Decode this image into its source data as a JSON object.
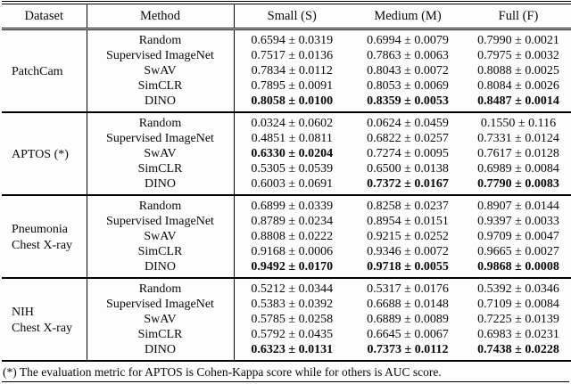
{
  "table": {
    "headers": [
      "Dataset",
      "Method",
      "Small (S)",
      "Medium (M)",
      "Full (F)"
    ],
    "groups": [
      {
        "dataset": "PatchCam",
        "rows": [
          {
            "method": "Random",
            "values": [
              "0.6594 ± 0.0319",
              "0.6994 ± 0.0079",
              "0.7990 ± 0.0021"
            ],
            "bold": [
              false,
              false,
              false
            ]
          },
          {
            "method": "Supervised ImageNet",
            "values": [
              "0.7517 ± 0.0136",
              "0.7863 ± 0.0063",
              "0.7975 ± 0.0032"
            ],
            "bold": [
              false,
              false,
              false
            ]
          },
          {
            "method": "SwAV",
            "values": [
              "0.7834 ± 0.0112",
              "0.8043 ± 0.0072",
              "0.8088 ± 0.0025"
            ],
            "bold": [
              false,
              false,
              false
            ]
          },
          {
            "method": "SimCLR",
            "values": [
              "0.7895 ± 0.0091",
              "0.8053 ± 0.0069",
              "0.8084 ± 0.0026"
            ],
            "bold": [
              false,
              false,
              false
            ]
          },
          {
            "method": "DINO",
            "values": [
              "0.8058 ± 0.0100",
              "0.8359 ± 0.0053",
              "0.8487 ± 0.0014"
            ],
            "bold": [
              true,
              true,
              true
            ]
          }
        ]
      },
      {
        "dataset": "APTOS (*)",
        "rows": [
          {
            "method": "Random",
            "values": [
              "0.0324 ± 0.0602",
              "0.0624 ± 0.0459",
              "0.1550 ± 0.116"
            ],
            "bold": [
              false,
              false,
              false
            ]
          },
          {
            "method": "Supervised ImageNet",
            "values": [
              "0.4851 ± 0.0811",
              "0.6822 ± 0.0257",
              "0.7331 ± 0.0124"
            ],
            "bold": [
              false,
              false,
              false
            ]
          },
          {
            "method": "SwAV",
            "values": [
              "0.6330 ± 0.0204",
              "0.7274 ± 0.0095",
              "0.7617 ± 0.0128"
            ],
            "bold": [
              true,
              false,
              false
            ]
          },
          {
            "method": "SimCLR",
            "values": [
              "0.5305 ± 0.0539",
              "0.6500 ± 0.0138",
              "0.6989 ± 0.0084"
            ],
            "bold": [
              false,
              false,
              false
            ]
          },
          {
            "method": "DINO",
            "values": [
              "0.6003 ± 0.0691",
              "0.7372 ± 0.0167",
              "0.7790 ± 0.0083"
            ],
            "bold": [
              false,
              true,
              true
            ]
          }
        ]
      },
      {
        "dataset": "Pneumonia\nChest X-ray",
        "rows": [
          {
            "method": "Random",
            "values": [
              "0.6899 ± 0.0339",
              "0.8258 ± 0.0237",
              "0.8907 ± 0.0144"
            ],
            "bold": [
              false,
              false,
              false
            ]
          },
          {
            "method": "Supervised ImageNet",
            "values": [
              "0.8789 ± 0.0234",
              "0.8954 ± 0.0151",
              "0.9397 ± 0.0033"
            ],
            "bold": [
              false,
              false,
              false
            ]
          },
          {
            "method": "SwAV",
            "values": [
              "0.8808 ± 0.0222",
              "0.9215 ± 0.0252",
              "0.9709 ± 0.0047"
            ],
            "bold": [
              false,
              false,
              false
            ]
          },
          {
            "method": "SimCLR",
            "values": [
              "0.9168 ± 0.0006",
              "0.9346 ± 0.0072",
              "0.9665 ± 0.0027"
            ],
            "bold": [
              false,
              false,
              false
            ]
          },
          {
            "method": "DINO",
            "values": [
              "0.9492 ± 0.0170",
              "0.9718 ± 0.0055",
              "0.9868 ± 0.0008"
            ],
            "bold": [
              true,
              true,
              true
            ]
          }
        ]
      },
      {
        "dataset": "NIH\nChest X-ray",
        "rows": [
          {
            "method": "Random",
            "values": [
              "0.5212 ± 0.0344",
              "0.5317 ± 0.0176",
              "0.5392 ± 0.0346"
            ],
            "bold": [
              false,
              false,
              false
            ]
          },
          {
            "method": "Supervised ImageNet",
            "values": [
              "0.5383 ± 0.0392",
              "0.6688 ± 0.0148",
              "0.7109 ± 0.0084"
            ],
            "bold": [
              false,
              false,
              false
            ]
          },
          {
            "method": "SwAV",
            "values": [
              "0.5785 ± 0.0258",
              "0.6889 ± 0.0089",
              "0.7225 ± 0.0139"
            ],
            "bold": [
              false,
              false,
              false
            ]
          },
          {
            "method": "SimCLR",
            "values": [
              "0.5792 ± 0.0435",
              "0.6645 ± 0.0067",
              "0.6983 ± 0.0231"
            ],
            "bold": [
              false,
              false,
              false
            ]
          },
          {
            "method": "DINO",
            "values": [
              "0.6323 ± 0.0131",
              "0.7373 ± 0.0112",
              "0.7438 ± 0.0228"
            ],
            "bold": [
              true,
              true,
              true
            ]
          }
        ]
      }
    ]
  },
  "footnote": "(*) The evaluation metric for APTOS is Cohen-Kappa score while for others is AUC score.",
  "colors": {
    "text": "#090909",
    "rule": "#000000",
    "background": "#fdfdfd"
  }
}
